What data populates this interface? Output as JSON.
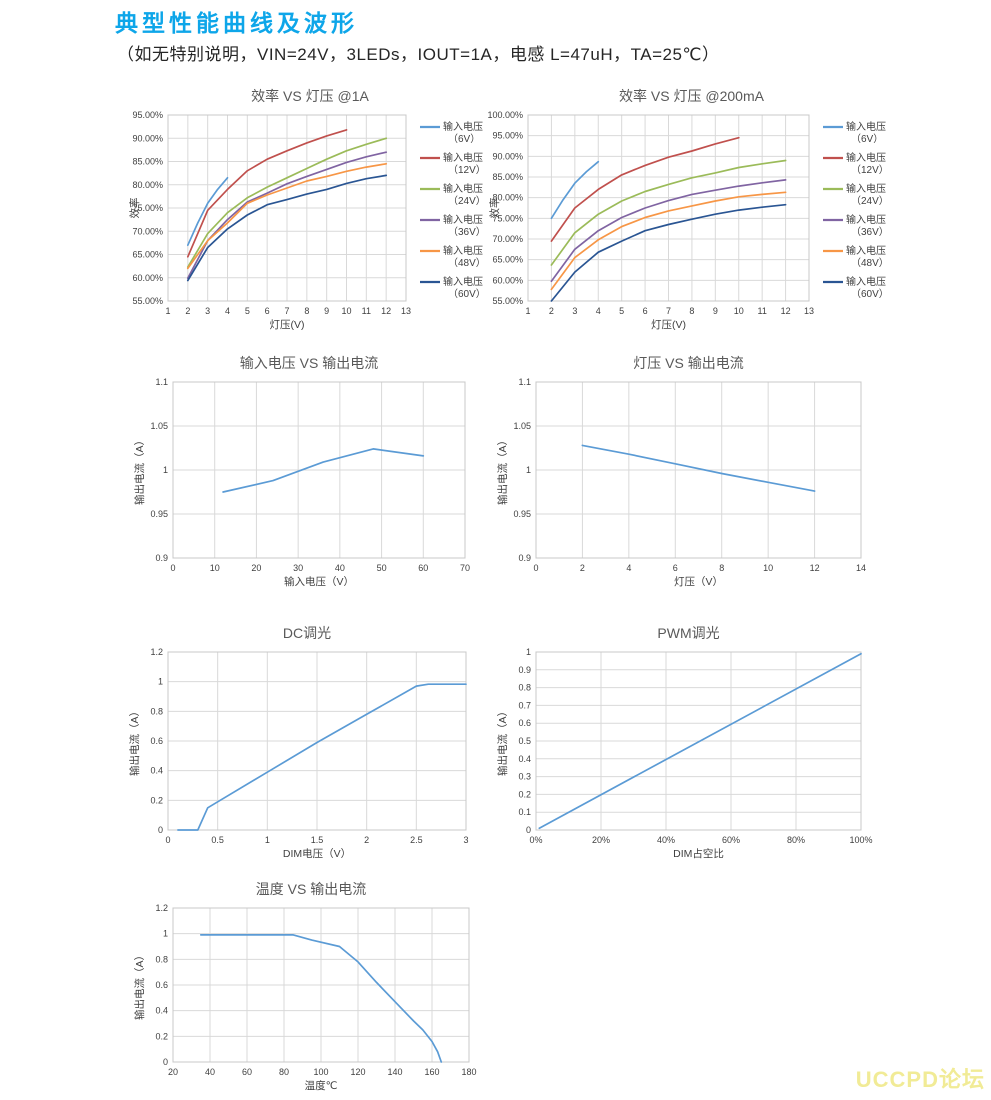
{
  "header": {
    "title": "典型性能曲线及波形",
    "conditions": "（如无特别说明，VIN=24V，3LEDs，IOUT=1A，电感 L=47uH，TA=25℃）"
  },
  "watermark": {
    "text": "UCCPD论坛",
    "color": "#f1eb96"
  },
  "colors": {
    "accent_title": "#0ea6e9",
    "grid": "#d9d9d9",
    "plot_border": "#c8c8c8",
    "tick_text": "#404040",
    "chart_title_text": "#595959",
    "series_blue": "#5B9BD5",
    "series_red": "#C0504D",
    "series_green": "#9BBB59",
    "series_purple": "#8064A2",
    "series_orange": "#F79646",
    "series_navy": "#2A5593"
  },
  "chart_data": [
    {
      "type": "line",
      "title": "效率 VS 灯压 @1A",
      "xlabel": "灯压(V)",
      "ylabel": "效率",
      "xlim": [
        1,
        13
      ],
      "ylim": [
        55,
        95
      ],
      "xticks": [
        1,
        2,
        3,
        4,
        5,
        6,
        7,
        8,
        9,
        10,
        11,
        12,
        13
      ],
      "xtick_labels": [
        "1",
        "2",
        "3",
        "4",
        "5",
        "6",
        "7",
        "8",
        "9",
        "10",
        "11",
        "12",
        "13"
      ],
      "yticks": [
        55,
        60,
        65,
        70,
        75,
        80,
        85,
        90,
        95
      ],
      "ytick_labels": [
        "55.00%",
        "60.00%",
        "65.00%",
        "70.00%",
        "75.00%",
        "80.00%",
        "85.00%",
        "90.00%",
        "95.00%"
      ],
      "legend": true,
      "series": [
        {
          "name": "输入电压（6V）",
          "legend_lines": [
            "输入电压",
            "（6V）"
          ],
          "color": "#5B9BD5",
          "points": [
            [
              2,
              67
            ],
            [
              2.5,
              71.8
            ],
            [
              3,
              76
            ],
            [
              3.5,
              79
            ],
            [
              4,
              81.5
            ]
          ]
        },
        {
          "name": "输入电压（12V）",
          "legend_lines": [
            "输入电压",
            "（12V）"
          ],
          "color": "#C0504D",
          "points": [
            [
              2,
              64.5
            ],
            [
              3,
              74.5
            ],
            [
              4,
              79
            ],
            [
              5,
              83
            ],
            [
              6,
              85.5
            ],
            [
              7,
              87.3
            ],
            [
              8,
              89
            ],
            [
              9,
              90.5
            ],
            [
              10,
              91.8
            ]
          ]
        },
        {
          "name": "输入电压（24V）",
          "legend_lines": [
            "输入电压",
            "（24V）"
          ],
          "color": "#9BBB59",
          "points": [
            [
              2,
              62.3
            ],
            [
              3,
              69.5
            ],
            [
              4,
              74
            ],
            [
              5,
              77.2
            ],
            [
              6,
              79.5
            ],
            [
              7,
              81.5
            ],
            [
              8,
              83.5
            ],
            [
              9,
              85.5
            ],
            [
              10,
              87.3
            ],
            [
              11,
              88.7
            ],
            [
              12,
              90
            ]
          ]
        },
        {
          "name": "输入电压（36V）",
          "legend_lines": [
            "输入电压",
            "（36V）"
          ],
          "color": "#8064A2",
          "points": [
            [
              2,
              59.9
            ],
            [
              3,
              68
            ],
            [
              4,
              72.5
            ],
            [
              5,
              76.3
            ],
            [
              6,
              78.2
            ],
            [
              7,
              80.2
            ],
            [
              8,
              81.8
            ],
            [
              9,
              83.3
            ],
            [
              10,
              84.8
            ],
            [
              11,
              86
            ],
            [
              12,
              87
            ]
          ]
        },
        {
          "name": "输入电压（48V）",
          "legend_lines": [
            "输入电压",
            "（48V）"
          ],
          "color": "#F79646",
          "points": [
            [
              2,
              62
            ],
            [
              3,
              68
            ],
            [
              4,
              71.8
            ],
            [
              5,
              76
            ],
            [
              6,
              77.8
            ],
            [
              7,
              79.3
            ],
            [
              8,
              80.8
            ],
            [
              9,
              81.8
            ],
            [
              10,
              82.9
            ],
            [
              11,
              83.8
            ],
            [
              12,
              84.5
            ]
          ]
        },
        {
          "name": "输入电压（60V）",
          "legend_lines": [
            "输入电压",
            "（60V）"
          ],
          "color": "#2A5593",
          "points": [
            [
              2,
              59.4
            ],
            [
              3,
              66.5
            ],
            [
              4,
              70.5
            ],
            [
              5,
              73.5
            ],
            [
              6,
              75.7
            ],
            [
              7,
              76.8
            ],
            [
              8,
              78
            ],
            [
              9,
              79
            ],
            [
              10,
              80.3
            ],
            [
              11,
              81.3
            ],
            [
              12,
              82
            ]
          ]
        }
      ]
    },
    {
      "type": "line",
      "title": "效率 VS 灯压 @200mA",
      "xlabel": "灯压(V)",
      "ylabel": "效率",
      "xlim": [
        1,
        13
      ],
      "ylim": [
        55,
        100
      ],
      "xticks": [
        1,
        2,
        3,
        4,
        5,
        6,
        7,
        8,
        9,
        10,
        11,
        12,
        13
      ],
      "xtick_labels": [
        "1",
        "2",
        "3",
        "4",
        "5",
        "6",
        "7",
        "8",
        "9",
        "10",
        "11",
        "12",
        "13"
      ],
      "yticks": [
        55,
        60,
        65,
        70,
        75,
        80,
        85,
        90,
        95,
        100
      ],
      "ytick_labels": [
        "55.00%",
        "60.00%",
        "65.00%",
        "70.00%",
        "75.00%",
        "80.00%",
        "85.00%",
        "90.00%",
        "95.00%",
        "100.00%"
      ],
      "legend": true,
      "series": [
        {
          "name": "输入电压（6V）",
          "legend_lines": [
            "输入电压",
            "（6V）"
          ],
          "color": "#5B9BD5",
          "points": [
            [
              2,
              75
            ],
            [
              2.5,
              79.5
            ],
            [
              3,
              83.5
            ],
            [
              3.5,
              86.3
            ],
            [
              4,
              88.7
            ]
          ]
        },
        {
          "name": "输入电压（12V）",
          "legend_lines": [
            "输入电压",
            "（12V）"
          ],
          "color": "#C0504D",
          "points": [
            [
              2,
              69.5
            ],
            [
              3,
              77.5
            ],
            [
              4,
              82
            ],
            [
              5,
              85.5
            ],
            [
              6,
              87.8
            ],
            [
              7,
              89.8
            ],
            [
              8,
              91.3
            ],
            [
              9,
              93
            ],
            [
              10,
              94.5
            ]
          ]
        },
        {
          "name": "输入电压（24V）",
          "legend_lines": [
            "输入电压",
            "（24V）"
          ],
          "color": "#9BBB59",
          "points": [
            [
              2,
              63.7
            ],
            [
              3,
              71.5
            ],
            [
              4,
              76
            ],
            [
              5,
              79.2
            ],
            [
              6,
              81.5
            ],
            [
              7,
              83.2
            ],
            [
              8,
              84.8
            ],
            [
              9,
              86
            ],
            [
              10,
              87.3
            ],
            [
              11,
              88.2
            ],
            [
              12,
              89
            ]
          ]
        },
        {
          "name": "输入电压（36V）",
          "legend_lines": [
            "输入电压",
            "（36V）"
          ],
          "color": "#8064A2",
          "points": [
            [
              2,
              59.8
            ],
            [
              3,
              67.5
            ],
            [
              4,
              72
            ],
            [
              5,
              75.2
            ],
            [
              6,
              77.5
            ],
            [
              7,
              79.3
            ],
            [
              8,
              80.8
            ],
            [
              9,
              81.8
            ],
            [
              10,
              82.8
            ],
            [
              11,
              83.6
            ],
            [
              12,
              84.3
            ]
          ]
        },
        {
          "name": "输入电压（48V）",
          "legend_lines": [
            "输入电压",
            "（48V）"
          ],
          "color": "#F79646",
          "points": [
            [
              2,
              57.8
            ],
            [
              3,
              65.5
            ],
            [
              4,
              69.8
            ],
            [
              5,
              73
            ],
            [
              6,
              75.2
            ],
            [
              7,
              76.8
            ],
            [
              8,
              78
            ],
            [
              9,
              79.2
            ],
            [
              10,
              80.2
            ],
            [
              11,
              80.8
            ],
            [
              12,
              81.3
            ]
          ]
        },
        {
          "name": "输入电压（60V）",
          "legend_lines": [
            "输入电压",
            "（60V）"
          ],
          "color": "#2A5593",
          "points": [
            [
              2,
              55
            ],
            [
              3,
              62
            ],
            [
              4,
              66.8
            ],
            [
              5,
              69.5
            ],
            [
              6,
              72
            ],
            [
              7,
              73.5
            ],
            [
              8,
              74.8
            ],
            [
              9,
              76
            ],
            [
              10,
              77
            ],
            [
              11,
              77.7
            ],
            [
              12,
              78.3
            ]
          ]
        }
      ]
    },
    {
      "type": "line",
      "title": "输入电压 VS 输出电流",
      "xlabel": "输入电压（V）",
      "ylabel": "输出电流（A）",
      "xlim": [
        0,
        70
      ],
      "ylim": [
        0.9,
        1.1
      ],
      "xticks": [
        0,
        10,
        20,
        30,
        40,
        50,
        60,
        70
      ],
      "xtick_labels": [
        "0",
        "10",
        "20",
        "30",
        "40",
        "50",
        "60",
        "70"
      ],
      "yticks": [
        0.9,
        0.95,
        1,
        1.05,
        1.1
      ],
      "ytick_labels": [
        "0.9",
        "0.95",
        "1",
        "1.05",
        "1.1"
      ],
      "legend": false,
      "series": [
        {
          "name": "输出电流",
          "color": "#5B9BD5",
          "points": [
            [
              12,
              0.975
            ],
            [
              24,
              0.988
            ],
            [
              36,
              1.009
            ],
            [
              48,
              1.024
            ],
            [
              60,
              1.016
            ]
          ]
        }
      ]
    },
    {
      "type": "line",
      "title": "灯压 VS 输出电流",
      "xlabel": "灯压（V）",
      "ylabel": "输出电流（A）",
      "xlim": [
        0,
        14
      ],
      "ylim": [
        0.9,
        1.1
      ],
      "xticks": [
        0,
        2,
        4,
        6,
        8,
        10,
        12,
        14
      ],
      "xtick_labels": [
        "0",
        "2",
        "4",
        "6",
        "8",
        "10",
        "12",
        "14"
      ],
      "yticks": [
        0.9,
        0.95,
        1,
        1.05,
        1.1
      ],
      "ytick_labels": [
        "0.9",
        "0.95",
        "1",
        "1.05",
        "1.1"
      ],
      "legend": false,
      "series": [
        {
          "name": "输出电流",
          "color": "#5B9BD5",
          "points": [
            [
              2,
              1.028
            ],
            [
              4,
              1.018
            ],
            [
              6,
              1.007
            ],
            [
              8,
              0.996
            ],
            [
              10,
              0.986
            ],
            [
              12,
              0.976
            ]
          ]
        }
      ]
    },
    {
      "type": "line",
      "title": "DC调光",
      "xlabel": "DIM电压（V）",
      "ylabel": "输出电流（A）",
      "xlim": [
        0,
        3
      ],
      "ylim": [
        0,
        1.2
      ],
      "xticks": [
        0,
        0.5,
        1,
        1.5,
        2,
        2.5,
        3
      ],
      "xtick_labels": [
        "0",
        "0.5",
        "1",
        "1.5",
        "2",
        "2.5",
        "3"
      ],
      "yticks": [
        0,
        0.2,
        0.4,
        0.6,
        0.8,
        1,
        1.2
      ],
      "ytick_labels": [
        "0",
        "0.2",
        "0.4",
        "0.6",
        "0.8",
        "1",
        "1.2"
      ],
      "legend": false,
      "series": [
        {
          "name": "输出电流",
          "color": "#5B9BD5",
          "points": [
            [
              0.1,
              0
            ],
            [
              0.3,
              0
            ],
            [
              0.4,
              0.15
            ],
            [
              0.5,
              0.19
            ],
            [
              1,
              0.39
            ],
            [
              1.5,
              0.59
            ],
            [
              2,
              0.78
            ],
            [
              2.5,
              0.97
            ],
            [
              2.62,
              0.983
            ],
            [
              3,
              0.983
            ]
          ]
        }
      ]
    },
    {
      "type": "line",
      "title": "PWM调光",
      "xlabel": "DIM占空比",
      "ylabel": "输出电流（A）",
      "xlim": [
        0,
        100
      ],
      "ylim": [
        0,
        1
      ],
      "xticks": [
        0,
        20,
        40,
        60,
        80,
        100
      ],
      "xtick_labels": [
        "0%",
        "20%",
        "40%",
        "60%",
        "80%",
        "100%"
      ],
      "yticks": [
        0,
        0.1,
        0.2,
        0.3,
        0.4,
        0.5,
        0.6,
        0.7,
        0.8,
        0.9,
        1
      ],
      "ytick_labels": [
        "0",
        "0.1",
        "0.2",
        "0.3",
        "0.4",
        "0.5",
        "0.6",
        "0.7",
        "0.8",
        "0.9",
        "1"
      ],
      "legend": false,
      "series": [
        {
          "name": "输出电流",
          "color": "#5B9BD5",
          "points": [
            [
              1,
              0.01
            ],
            [
              100,
              0.99
            ]
          ]
        }
      ]
    },
    {
      "type": "line",
      "title": "温度 VS 输出电流",
      "xlabel": "温度℃",
      "ylabel": "输出电流（A）",
      "xlim": [
        20,
        180
      ],
      "ylim": [
        0,
        1.2
      ],
      "xticks": [
        20,
        40,
        60,
        80,
        100,
        120,
        140,
        160,
        180
      ],
      "xtick_labels": [
        "20",
        "40",
        "60",
        "80",
        "100",
        "120",
        "140",
        "160",
        "180"
      ],
      "yticks": [
        0,
        0.2,
        0.4,
        0.6,
        0.8,
        1,
        1.2
      ],
      "ytick_labels": [
        "0",
        "0.2",
        "0.4",
        "0.6",
        "0.8",
        "1",
        "1.2"
      ],
      "legend": false,
      "series": [
        {
          "name": "输出电流",
          "color": "#5B9BD5",
          "points": [
            [
              35,
              0.99
            ],
            [
              85,
              0.99
            ],
            [
              95,
              0.95
            ],
            [
              110,
              0.9
            ],
            [
              120,
              0.78
            ],
            [
              130,
              0.62
            ],
            [
              140,
              0.47
            ],
            [
              150,
              0.32
            ],
            [
              155,
              0.25
            ],
            [
              160,
              0.16
            ],
            [
              163,
              0.08
            ],
            [
              165,
              0
            ]
          ]
        }
      ]
    }
  ]
}
